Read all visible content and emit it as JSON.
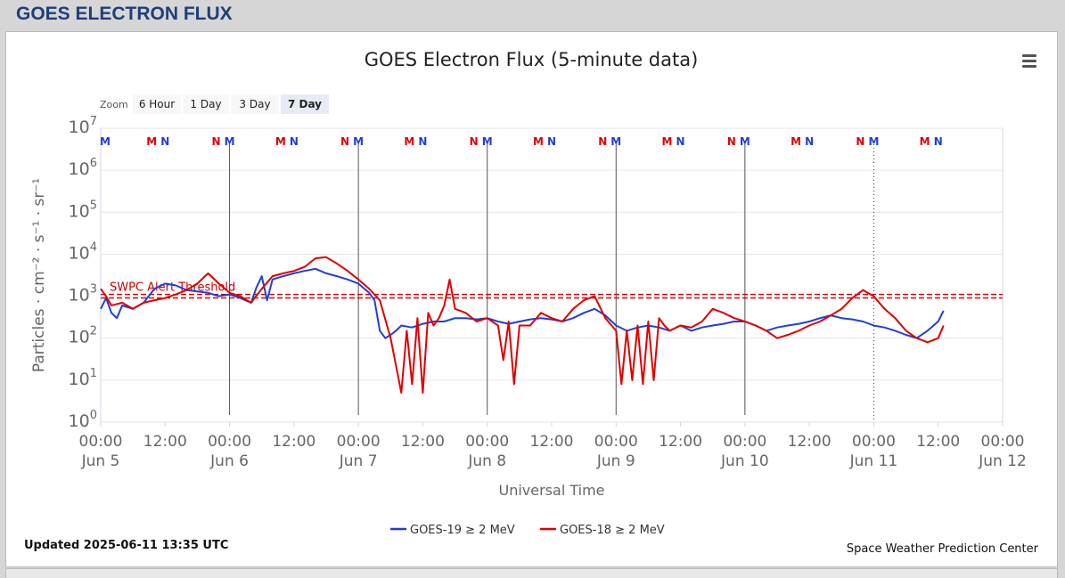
{
  "page": {
    "header": "GOES ELECTRON FLUX"
  },
  "chart": {
    "title": "GOES Electron Flux (5-minute data)",
    "zoom_label": "Zoom",
    "zoom_buttons": [
      "6 Hour",
      "1 Day",
      "3 Day",
      "7 Day"
    ],
    "zoom_selected": "7 Day",
    "menu_icon": "hamburger-menu-icon",
    "updated": "Updated 2025-06-11 13:35 UTC",
    "credit": "Space Weather Prediction Center",
    "threshold_label": "SWPC Alert Threshold"
  },
  "chart_data": {
    "type": "line",
    "title": "GOES Electron Flux (5-minute data)",
    "xlabel": "Universal Time",
    "ylabel": "Particles · cm⁻² · s⁻¹ · sr⁻¹",
    "yscale": "log",
    "ylim": [
      1,
      10000000
    ],
    "xlim": [
      "2025-06-05 00:00",
      "2025-06-12 00:00"
    ],
    "y_ticks": [
      {
        "base": "10",
        "exp": "0",
        "value": 1
      },
      {
        "base": "10",
        "exp": "1",
        "value": 10
      },
      {
        "base": "10",
        "exp": "2",
        "value": 100
      },
      {
        "base": "10",
        "exp": "3",
        "value": 1000
      },
      {
        "base": "10",
        "exp": "4",
        "value": 10000
      },
      {
        "base": "10",
        "exp": "5",
        "value": 100000
      },
      {
        "base": "10",
        "exp": "6",
        "value": 1000000
      },
      {
        "base": "10",
        "exp": "7",
        "value": 10000000
      }
    ],
    "x_ticks": [
      {
        "time": "2025-06-05 00:00",
        "label": "00:00",
        "sub": "Jun 5"
      },
      {
        "time": "2025-06-05 12:00",
        "label": "12:00",
        "sub": ""
      },
      {
        "time": "2025-06-06 00:00",
        "label": "00:00",
        "sub": "Jun 6"
      },
      {
        "time": "2025-06-06 12:00",
        "label": "12:00",
        "sub": ""
      },
      {
        "time": "2025-06-07 00:00",
        "label": "00:00",
        "sub": "Jun 7"
      },
      {
        "time": "2025-06-07 12:00",
        "label": "12:00",
        "sub": ""
      },
      {
        "time": "2025-06-08 00:00",
        "label": "00:00",
        "sub": "Jun 8"
      },
      {
        "time": "2025-06-08 12:00",
        "label": "12:00",
        "sub": ""
      },
      {
        "time": "2025-06-09 00:00",
        "label": "00:00",
        "sub": "Jun 9"
      },
      {
        "time": "2025-06-09 12:00",
        "label": "12:00",
        "sub": ""
      },
      {
        "time": "2025-06-10 00:00",
        "label": "00:00",
        "sub": "Jun 10"
      },
      {
        "time": "2025-06-10 12:00",
        "label": "12:00",
        "sub": ""
      },
      {
        "time": "2025-06-11 00:00",
        "label": "00:00",
        "sub": "Jun 11"
      },
      {
        "time": "2025-06-11 12:00",
        "label": "12:00",
        "sub": ""
      },
      {
        "time": "2025-06-12 00:00",
        "label": "00:00",
        "sub": "Jun 12"
      }
    ],
    "threshold": {
      "value": 1000,
      "label": "SWPC Alert Threshold",
      "color": "#cc0000"
    },
    "day_lines": [
      "2025-06-06 00:00",
      "2025-06-07 00:00",
      "2025-06-08 00:00",
      "2025-06-09 00:00",
      "2025-06-10 00:00"
    ],
    "day_line_dotted": [
      "2025-06-11 00:00"
    ],
    "midnight_noon_markers": [
      {
        "time": "2025-06-05 00:00",
        "text": "M",
        "color": "#1f3fd6"
      },
      {
        "time": "2025-06-05 09:30",
        "text": "M",
        "color": "#e00000"
      },
      {
        "time": "2025-06-05 12:00",
        "text": "N",
        "color": "#1f3fd6"
      },
      {
        "time": "2025-06-05 21:30",
        "text": "N",
        "color": "#e00000"
      },
      {
        "time": "2025-06-06 00:00",
        "text": "M",
        "color": "#1f3fd6"
      },
      {
        "time": "2025-06-06 09:30",
        "text": "M",
        "color": "#e00000"
      },
      {
        "time": "2025-06-06 12:00",
        "text": "N",
        "color": "#1f3fd6"
      },
      {
        "time": "2025-06-06 21:30",
        "text": "N",
        "color": "#e00000"
      },
      {
        "time": "2025-06-07 00:00",
        "text": "M",
        "color": "#1f3fd6"
      },
      {
        "time": "2025-06-07 09:30",
        "text": "M",
        "color": "#e00000"
      },
      {
        "time": "2025-06-07 12:00",
        "text": "N",
        "color": "#1f3fd6"
      },
      {
        "time": "2025-06-07 21:30",
        "text": "N",
        "color": "#e00000"
      },
      {
        "time": "2025-06-08 00:00",
        "text": "M",
        "color": "#1f3fd6"
      },
      {
        "time": "2025-06-08 09:30",
        "text": "M",
        "color": "#e00000"
      },
      {
        "time": "2025-06-08 12:00",
        "text": "N",
        "color": "#1f3fd6"
      },
      {
        "time": "2025-06-08 21:30",
        "text": "N",
        "color": "#e00000"
      },
      {
        "time": "2025-06-09 00:00",
        "text": "M",
        "color": "#1f3fd6"
      },
      {
        "time": "2025-06-09 09:30",
        "text": "M",
        "color": "#e00000"
      },
      {
        "time": "2025-06-09 12:00",
        "text": "N",
        "color": "#1f3fd6"
      },
      {
        "time": "2025-06-09 21:30",
        "text": "N",
        "color": "#e00000"
      },
      {
        "time": "2025-06-10 00:00",
        "text": "M",
        "color": "#1f3fd6"
      },
      {
        "time": "2025-06-10 09:30",
        "text": "M",
        "color": "#e00000"
      },
      {
        "time": "2025-06-10 12:00",
        "text": "N",
        "color": "#1f3fd6"
      },
      {
        "time": "2025-06-10 21:30",
        "text": "N",
        "color": "#e00000"
      },
      {
        "time": "2025-06-11 00:00",
        "text": "M",
        "color": "#1f3fd6"
      },
      {
        "time": "2025-06-11 09:30",
        "text": "M",
        "color": "#e00000"
      },
      {
        "time": "2025-06-11 12:00",
        "text": "N",
        "color": "#1f3fd6"
      }
    ],
    "legend_placement": "bottom-center",
    "grid": true,
    "series": [
      {
        "name": "GOES-19 ≥ 2 MeV",
        "color": "#1f3fd6",
        "x": [
          "2025-06-05 00:00",
          "2025-06-05 01:00",
          "2025-06-05 02:00",
          "2025-06-05 03:00",
          "2025-06-05 04:00",
          "2025-06-05 06:00",
          "2025-06-05 08:00",
          "2025-06-05 10:00",
          "2025-06-05 12:00",
          "2025-06-05 14:00",
          "2025-06-05 16:00",
          "2025-06-05 18:00",
          "2025-06-05 20:00",
          "2025-06-05 22:00",
          "2025-06-06 00:00",
          "2025-06-06 02:00",
          "2025-06-06 04:00",
          "2025-06-06 05:00",
          "2025-06-06 06:00",
          "2025-06-06 07:00",
          "2025-06-06 08:00",
          "2025-06-06 10:00",
          "2025-06-06 12:00",
          "2025-06-06 14:00",
          "2025-06-06 16:00",
          "2025-06-06 18:00",
          "2025-06-06 20:00",
          "2025-06-06 22:00",
          "2025-06-07 00:00",
          "2025-06-07 02:00",
          "2025-06-07 03:00",
          "2025-06-07 04:00",
          "2025-06-07 05:00",
          "2025-06-07 06:00",
          "2025-06-07 07:00",
          "2025-06-07 08:00",
          "2025-06-07 10:00",
          "2025-06-07 12:00",
          "2025-06-07 14:00",
          "2025-06-07 16:00",
          "2025-06-07 18:00",
          "2025-06-07 20:00",
          "2025-06-07 22:00",
          "2025-06-08 00:00",
          "2025-06-08 02:00",
          "2025-06-08 04:00",
          "2025-06-08 06:00",
          "2025-06-08 08:00",
          "2025-06-08 10:00",
          "2025-06-08 12:00",
          "2025-06-08 14:00",
          "2025-06-08 16:00",
          "2025-06-08 18:00",
          "2025-06-08 20:00",
          "2025-06-08 22:00",
          "2025-06-09 00:00",
          "2025-06-09 02:00",
          "2025-06-09 04:00",
          "2025-06-09 06:00",
          "2025-06-09 08:00",
          "2025-06-09 10:00",
          "2025-06-09 12:00",
          "2025-06-09 14:00",
          "2025-06-09 16:00",
          "2025-06-09 18:00",
          "2025-06-09 20:00",
          "2025-06-09 22:00",
          "2025-06-10 00:00",
          "2025-06-10 02:00",
          "2025-06-10 04:00",
          "2025-06-10 06:00",
          "2025-06-10 08:00",
          "2025-06-10 10:00",
          "2025-06-10 12:00",
          "2025-06-10 14:00",
          "2025-06-10 16:00",
          "2025-06-10 18:00",
          "2025-06-10 20:00",
          "2025-06-10 22:00",
          "2025-06-11 00:00",
          "2025-06-11 02:00",
          "2025-06-11 04:00",
          "2025-06-11 06:00",
          "2025-06-11 08:00",
          "2025-06-11 10:00",
          "2025-06-11 12:00",
          "2025-06-11 13:00"
        ],
        "y": [
          500,
          900,
          400,
          300,
          600,
          500,
          700,
          1500,
          2000,
          1800,
          1400,
          1300,
          1200,
          1000,
          1100,
          900,
          700,
          1600,
          3000,
          800,
          2500,
          3000,
          3500,
          4000,
          4500,
          3500,
          3000,
          2500,
          2000,
          1200,
          800,
          150,
          100,
          120,
          150,
          200,
          180,
          220,
          250,
          250,
          300,
          300,
          280,
          300,
          250,
          220,
          250,
          280,
          300,
          280,
          250,
          300,
          400,
          500,
          350,
          200,
          150,
          180,
          200,
          180,
          150,
          200,
          150,
          180,
          200,
          220,
          250,
          250,
          200,
          150,
          180,
          200,
          220,
          250,
          300,
          350,
          300,
          280,
          250,
          200,
          180,
          150,
          120,
          100,
          150,
          250,
          450
        ]
      },
      {
        "name": "GOES-18 ≥ 2 MeV",
        "color": "#e00000",
        "x": [
          "2025-06-05 00:00",
          "2025-06-05 01:00",
          "2025-06-05 02:00",
          "2025-06-05 04:00",
          "2025-06-05 06:00",
          "2025-06-05 08:00",
          "2025-06-05 10:00",
          "2025-06-05 12:00",
          "2025-06-05 14:00",
          "2025-06-05 16:00",
          "2025-06-05 18:00",
          "2025-06-05 20:00",
          "2025-06-05 22:00",
          "2025-06-06 00:00",
          "2025-06-06 02:00",
          "2025-06-06 04:00",
          "2025-06-06 06:00",
          "2025-06-06 08:00",
          "2025-06-06 10:00",
          "2025-06-06 12:00",
          "2025-06-06 14:00",
          "2025-06-06 16:00",
          "2025-06-06 18:00",
          "2025-06-06 20:00",
          "2025-06-06 22:00",
          "2025-06-07 00:00",
          "2025-06-07 02:00",
          "2025-06-07 04:00",
          "2025-06-07 06:00",
          "2025-06-07 08:00",
          "2025-06-07 09:00",
          "2025-06-07 10:00",
          "2025-06-07 11:00",
          "2025-06-07 12:00",
          "2025-06-07 13:00",
          "2025-06-07 14:00",
          "2025-06-07 15:00",
          "2025-06-07 16:00",
          "2025-06-07 17:00",
          "2025-06-07 18:00",
          "2025-06-07 20:00",
          "2025-06-07 22:00",
          "2025-06-08 00:00",
          "2025-06-08 02:00",
          "2025-06-08 03:00",
          "2025-06-08 04:00",
          "2025-06-08 05:00",
          "2025-06-08 06:00",
          "2025-06-08 08:00",
          "2025-06-08 10:00",
          "2025-06-08 12:00",
          "2025-06-08 14:00",
          "2025-06-08 16:00",
          "2025-06-08 18:00",
          "2025-06-08 20:00",
          "2025-06-08 22:00",
          "2025-06-09 00:00",
          "2025-06-09 01:00",
          "2025-06-09 02:00",
          "2025-06-09 03:00",
          "2025-06-09 04:00",
          "2025-06-09 05:00",
          "2025-06-09 06:00",
          "2025-06-09 07:00",
          "2025-06-09 08:00",
          "2025-06-09 09:00",
          "2025-06-09 10:00",
          "2025-06-09 12:00",
          "2025-06-09 14:00",
          "2025-06-09 16:00",
          "2025-06-09 18:00",
          "2025-06-09 20:00",
          "2025-06-09 22:00",
          "2025-06-10 00:00",
          "2025-06-10 02:00",
          "2025-06-10 04:00",
          "2025-06-10 06:00",
          "2025-06-10 08:00",
          "2025-06-10 10:00",
          "2025-06-10 12:00",
          "2025-06-10 14:00",
          "2025-06-10 16:00",
          "2025-06-10 18:00",
          "2025-06-10 20:00",
          "2025-06-10 22:00",
          "2025-06-11 00:00",
          "2025-06-11 02:00",
          "2025-06-11 04:00",
          "2025-06-11 06:00",
          "2025-06-11 08:00",
          "2025-06-11 10:00",
          "2025-06-11 12:00",
          "2025-06-11 13:00"
        ],
        "y": [
          1500,
          1000,
          600,
          700,
          500,
          700,
          800,
          900,
          1100,
          1400,
          2000,
          3500,
          2000,
          1200,
          1000,
          700,
          1500,
          3000,
          3500,
          4000,
          5000,
          8000,
          8500,
          6000,
          4000,
          2500,
          1500,
          800,
          100,
          5,
          150,
          8,
          300,
          5,
          400,
          200,
          300,
          600,
          2500,
          500,
          400,
          250,
          300,
          200,
          30,
          250,
          8,
          200,
          200,
          400,
          300,
          250,
          500,
          800,
          1000,
          300,
          150,
          8,
          150,
          10,
          200,
          8,
          250,
          10,
          300,
          200,
          150,
          200,
          180,
          250,
          500,
          400,
          300,
          250,
          200,
          150,
          100,
          120,
          150,
          200,
          250,
          350,
          500,
          900,
          1400,
          1000,
          500,
          300,
          150,
          100,
          80,
          100,
          200
        ]
      }
    ]
  }
}
